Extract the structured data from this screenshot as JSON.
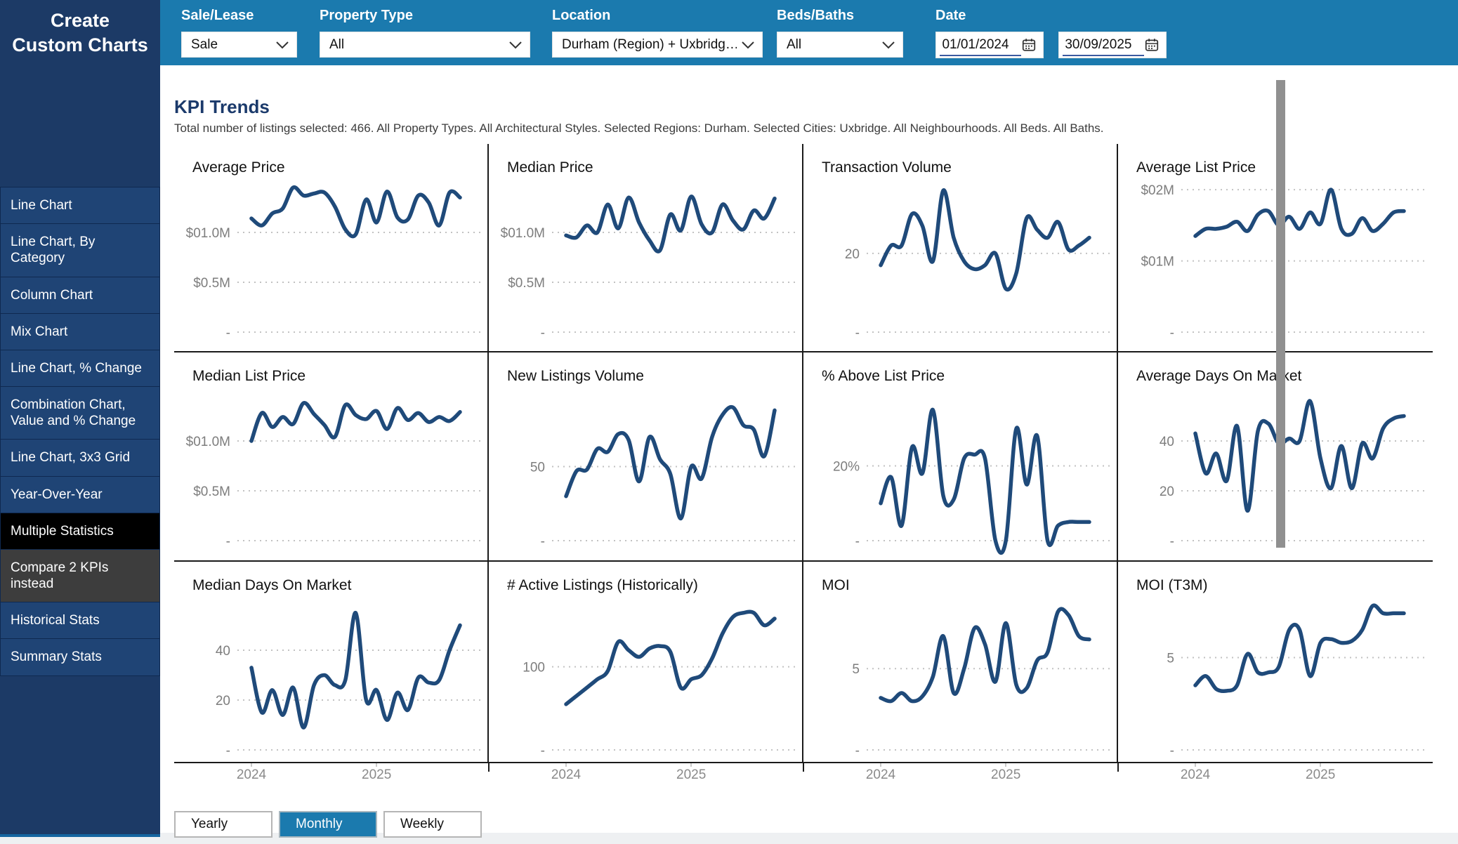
{
  "colors": {
    "header": "#1b7aae",
    "sidebar": "#1c3a66",
    "sidebar_item": "#1f4475",
    "selected_item": "#000000",
    "gray_item": "#3d3d3d",
    "accent_button": "#1b7aae",
    "line": "#1f4a7a",
    "grid": "#c2c2c2",
    "axis_label": "#7d7d7d",
    "separator": "#1a1a1a",
    "heading": "#1b3a6b"
  },
  "icons": {
    "chevron_down": "⌄",
    "calendar": "🗓"
  },
  "sidebar": {
    "title_lines": [
      "Create",
      "Custom Charts"
    ],
    "items": [
      {
        "label": "Line Chart"
      },
      {
        "label": "Line Chart, By Category"
      },
      {
        "label": "Column Chart"
      },
      {
        "label": "Mix Chart"
      },
      {
        "label": "Line Chart, % Change"
      },
      {
        "label": "Combination Chart, Value and % Change"
      },
      {
        "label": "Line Chart, 3x3 Grid"
      },
      {
        "label": "Year-Over-Year"
      },
      {
        "label": "Multiple Statistics",
        "selected": true
      },
      {
        "label": "Compare 2 KPIs instead",
        "variant": "gray"
      },
      {
        "label": "Historical Stats"
      },
      {
        "label": "Summary Stats"
      }
    ]
  },
  "filters": {
    "sale_lease": {
      "label": "Sale/Lease",
      "value": "Sale"
    },
    "property_type": {
      "label": "Property Type",
      "value": "All"
    },
    "location": {
      "label": "Location",
      "value": "Durham (Region) + Uxbridg…"
    },
    "beds_baths": {
      "label": "Beds/Baths",
      "value": "All"
    },
    "date": {
      "label": "Date",
      "start": "01/01/2024",
      "end": "30/09/2025"
    }
  },
  "main": {
    "title": "KPI Trends",
    "subtitle": "Total number of listings selected: 466. All Property Types. All Architectural Styles. Selected Regions: Durham. Selected Cities: Uxbridge. All Neighbourhoods. All Beds. All Baths.",
    "period_buttons": [
      {
        "label": "Yearly"
      },
      {
        "label": "Monthly",
        "selected": true
      },
      {
        "label": "Weekly"
      }
    ]
  },
  "chart_data": {
    "type": "line",
    "frequency": "Monthly",
    "legend_position": "none",
    "grid": "dotted-horizontal",
    "x_months": [
      "2024-01",
      "2024-02",
      "2024-03",
      "2024-04",
      "2024-05",
      "2024-06",
      "2024-07",
      "2024-08",
      "2024-09",
      "2024-10",
      "2024-11",
      "2024-12",
      "2025-01",
      "2025-02",
      "2025-03",
      "2025-04",
      "2025-05",
      "2025-06",
      "2025-07",
      "2025-08",
      "2025-09"
    ],
    "x_ticks": [
      {
        "label": "2024",
        "month_index": 0
      },
      {
        "label": "2025",
        "month_index": 12
      }
    ],
    "charts": [
      {
        "title": "Average Price",
        "unit": "$M",
        "ylim": [
          0,
          1.5
        ],
        "y_ticks": [
          {
            "label": "$01.0M",
            "value": 1.0
          },
          {
            "label": "$0.5M",
            "value": 0.5
          },
          {
            "label": "-",
            "value": 0
          }
        ],
        "values": [
          1.14,
          1.07,
          1.19,
          1.24,
          1.45,
          1.37,
          1.39,
          1.4,
          1.26,
          1.03,
          0.98,
          1.33,
          1.1,
          1.41,
          1.15,
          1.13,
          1.37,
          1.3,
          1.07,
          1.4,
          1.35
        ]
      },
      {
        "title": "Median Price",
        "unit": "$M",
        "ylim": [
          0,
          1.5
        ],
        "y_ticks": [
          {
            "label": "$01.0M",
            "value": 1.0
          },
          {
            "label": "$0.5M",
            "value": 0.5
          },
          {
            "label": "-",
            "value": 0
          }
        ],
        "values": [
          0.97,
          0.95,
          1.07,
          1.0,
          1.28,
          1.04,
          1.35,
          1.1,
          0.92,
          0.82,
          1.18,
          1.02,
          1.36,
          1.08,
          1.0,
          1.28,
          1.12,
          1.03,
          1.22,
          1.14,
          1.34
        ]
      },
      {
        "title": "Transaction Volume",
        "unit": "count",
        "ylim": [
          0,
          38
        ],
        "y_ticks": [
          {
            "label": "20",
            "value": 20
          },
          {
            "label": "-",
            "value": 0
          }
        ],
        "values": [
          17,
          22,
          22,
          30,
          27,
          18,
          36,
          24,
          18,
          16,
          17,
          20,
          11,
          15,
          29,
          26,
          24,
          28,
          21,
          22,
          24
        ]
      },
      {
        "title": "Average List Price",
        "unit": "$M",
        "ylim": [
          0,
          2.1
        ],
        "y_ticks": [
          {
            "label": "$02M",
            "value": 2
          },
          {
            "label": "$01M",
            "value": 1
          },
          {
            "label": "-",
            "value": 0
          }
        ],
        "values": [
          1.35,
          1.45,
          1.45,
          1.48,
          1.55,
          1.42,
          1.65,
          1.7,
          1.5,
          1.62,
          1.45,
          1.68,
          1.52,
          2.0,
          1.45,
          1.38,
          1.6,
          1.42,
          1.52,
          1.68,
          1.7
        ]
      },
      {
        "title": "Median List Price",
        "unit": "$M",
        "ylim": [
          0,
          1.5
        ],
        "y_ticks": [
          {
            "label": "$01.0M",
            "value": 1.0
          },
          {
            "label": "$0.5M",
            "value": 0.5
          },
          {
            "label": "-",
            "value": 0
          }
        ],
        "values": [
          1.0,
          1.28,
          1.14,
          1.24,
          1.17,
          1.38,
          1.27,
          1.16,
          1.04,
          1.36,
          1.26,
          1.22,
          1.3,
          1.12,
          1.33,
          1.21,
          1.28,
          1.19,
          1.24,
          1.2,
          1.29
        ]
      },
      {
        "title": "New Listings Volume",
        "unit": "count",
        "ylim": [
          0,
          101
        ],
        "y_ticks": [
          {
            "label": "50",
            "value": 50
          },
          {
            "label": "-",
            "value": 0
          }
        ],
        "values": [
          30,
          47,
          48,
          62,
          60,
          72,
          68,
          40,
          70,
          55,
          45,
          15,
          50,
          42,
          70,
          85,
          90,
          78,
          75,
          57,
          88
        ]
      },
      {
        "title": "% Above List Price",
        "unit": "%",
        "ylim": [
          0,
          40
        ],
        "y_ticks": [
          {
            "label": "20%",
            "value": 20
          },
          {
            "label": "-",
            "value": 0
          }
        ],
        "values": [
          10,
          17,
          4,
          25,
          18,
          35,
          12,
          11,
          22,
          23,
          22,
          0,
          0,
          30,
          15,
          28,
          0,
          4,
          5,
          5,
          5
        ]
      },
      {
        "title": "Average Days On Market",
        "unit": "days",
        "ylim": [
          0,
          60
        ],
        "y_ticks": [
          {
            "label": "40",
            "value": 40
          },
          {
            "label": "20",
            "value": 20
          },
          {
            "label": "-",
            "value": 0
          }
        ],
        "values": [
          43,
          27,
          35,
          24,
          46,
          12,
          44,
          47,
          39,
          41,
          40,
          56,
          33,
          21,
          38,
          21,
          39,
          33,
          45,
          49,
          50
        ]
      },
      {
        "title": "Median Days On Market",
        "unit": "days",
        "ylim": [
          0,
          60
        ],
        "y_ticks": [
          {
            "label": "40",
            "value": 40
          },
          {
            "label": "20",
            "value": 20
          },
          {
            "label": "-",
            "value": 0
          }
        ],
        "values": [
          33,
          15,
          24,
          14,
          25,
          9,
          26,
          30,
          26,
          28,
          55,
          20,
          24,
          12,
          23,
          16,
          29,
          27,
          28,
          40,
          50
        ]
      },
      {
        "title": "# Active Listings (Historically)",
        "unit": "count",
        "ylim": [
          0,
          180
        ],
        "y_ticks": [
          {
            "label": "100",
            "value": 100
          },
          {
            "label": "-",
            "value": 0
          }
        ],
        "values": [
          55,
          65,
          75,
          85,
          95,
          130,
          120,
          112,
          122,
          125,
          118,
          75,
          85,
          90,
          110,
          140,
          160,
          165,
          165,
          150,
          158
        ]
      },
      {
        "title": "MOI",
        "unit": "months",
        "ylim": [
          0,
          9.2
        ],
        "y_ticks": [
          {
            "label": "5",
            "value": 5
          },
          {
            "label": "-",
            "value": 0
          }
        ],
        "values": [
          3.2,
          3.0,
          3.5,
          3.0,
          3.3,
          4.5,
          7.0,
          3.5,
          5.0,
          7.5,
          6.5,
          4.2,
          7.8,
          4.0,
          3.8,
          5.5,
          6.0,
          8.5,
          8.3,
          7.0,
          6.8
        ]
      },
      {
        "title": "MOI (T3M)",
        "unit": "months",
        "ylim": [
          0,
          8.1
        ],
        "y_ticks": [
          {
            "label": "5",
            "value": 5
          },
          {
            "label": "-",
            "value": 0
          }
        ],
        "values": [
          3.5,
          4.0,
          3.3,
          3.2,
          3.5,
          5.2,
          4.2,
          4.2,
          4.5,
          6.5,
          6.5,
          4.0,
          5.8,
          6.0,
          5.8,
          5.9,
          6.5,
          7.8,
          7.4,
          7.4,
          7.4
        ]
      }
    ]
  }
}
